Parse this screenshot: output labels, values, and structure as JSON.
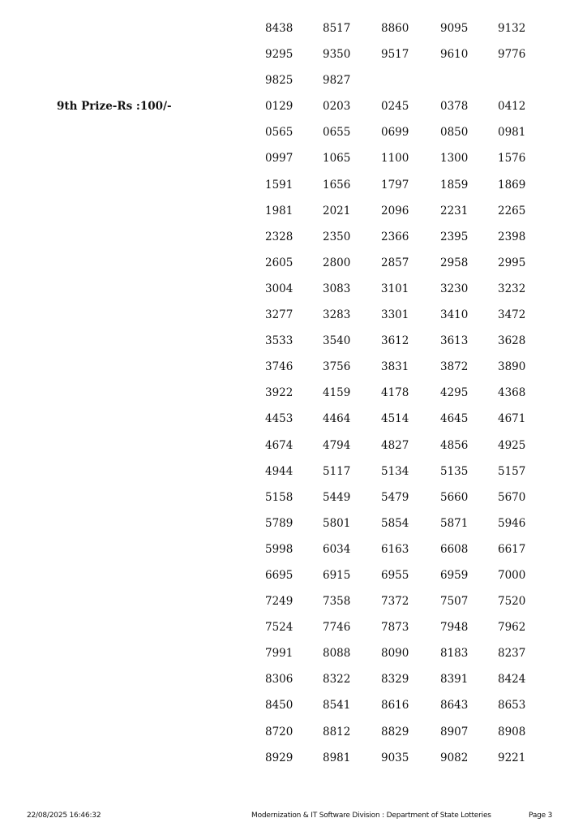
{
  "sections": [
    {
      "label": "",
      "numbers": [
        "8438",
        "8517",
        "8860",
        "9095",
        "9132",
        "9295",
        "9350",
        "9517",
        "9610",
        "9776",
        "9825",
        "9827"
      ]
    },
    {
      "label": "9th Prize-Rs :100/-",
      "numbers": [
        "0129",
        "0203",
        "0245",
        "0378",
        "0412",
        "0565",
        "0655",
        "0699",
        "0850",
        "0981",
        "0997",
        "1065",
        "1100",
        "1300",
        "1576",
        "1591",
        "1656",
        "1797",
        "1859",
        "1869",
        "1981",
        "2021",
        "2096",
        "2231",
        "2265",
        "2328",
        "2350",
        "2366",
        "2395",
        "2398",
        "2605",
        "2800",
        "2857",
        "2958",
        "2995",
        "3004",
        "3083",
        "3101",
        "3230",
        "3232",
        "3277",
        "3283",
        "3301",
        "3410",
        "3472",
        "3533",
        "3540",
        "3612",
        "3613",
        "3628",
        "3746",
        "3756",
        "3831",
        "3872",
        "3890",
        "3922",
        "4159",
        "4178",
        "4295",
        "4368",
        "4453",
        "4464",
        "4514",
        "4645",
        "4671",
        "4674",
        "4794",
        "4827",
        "4856",
        "4925",
        "4944",
        "5117",
        "5134",
        "5135",
        "5157",
        "5158",
        "5449",
        "5479",
        "5660",
        "5670",
        "5789",
        "5801",
        "5854",
        "5871",
        "5946",
        "5998",
        "6034",
        "6163",
        "6608",
        "6617",
        "6695",
        "6915",
        "6955",
        "6959",
        "7000",
        "7249",
        "7358",
        "7372",
        "7507",
        "7520",
        "7524",
        "7746",
        "7873",
        "7948",
        "7962",
        "7991",
        "8088",
        "8090",
        "8183",
        "8237",
        "8306",
        "8322",
        "8329",
        "8391",
        "8424",
        "8450",
        "8541",
        "8616",
        "8643",
        "8653",
        "8720",
        "8812",
        "8829",
        "8907",
        "8908",
        "8929",
        "8981",
        "9035",
        "9082",
        "9221"
      ]
    }
  ],
  "footer": {
    "timestamp": "22/08/2025 16:46:32",
    "division": "Modernization & IT Software Division : Department of State Lotteries",
    "page": "Page 3"
  }
}
